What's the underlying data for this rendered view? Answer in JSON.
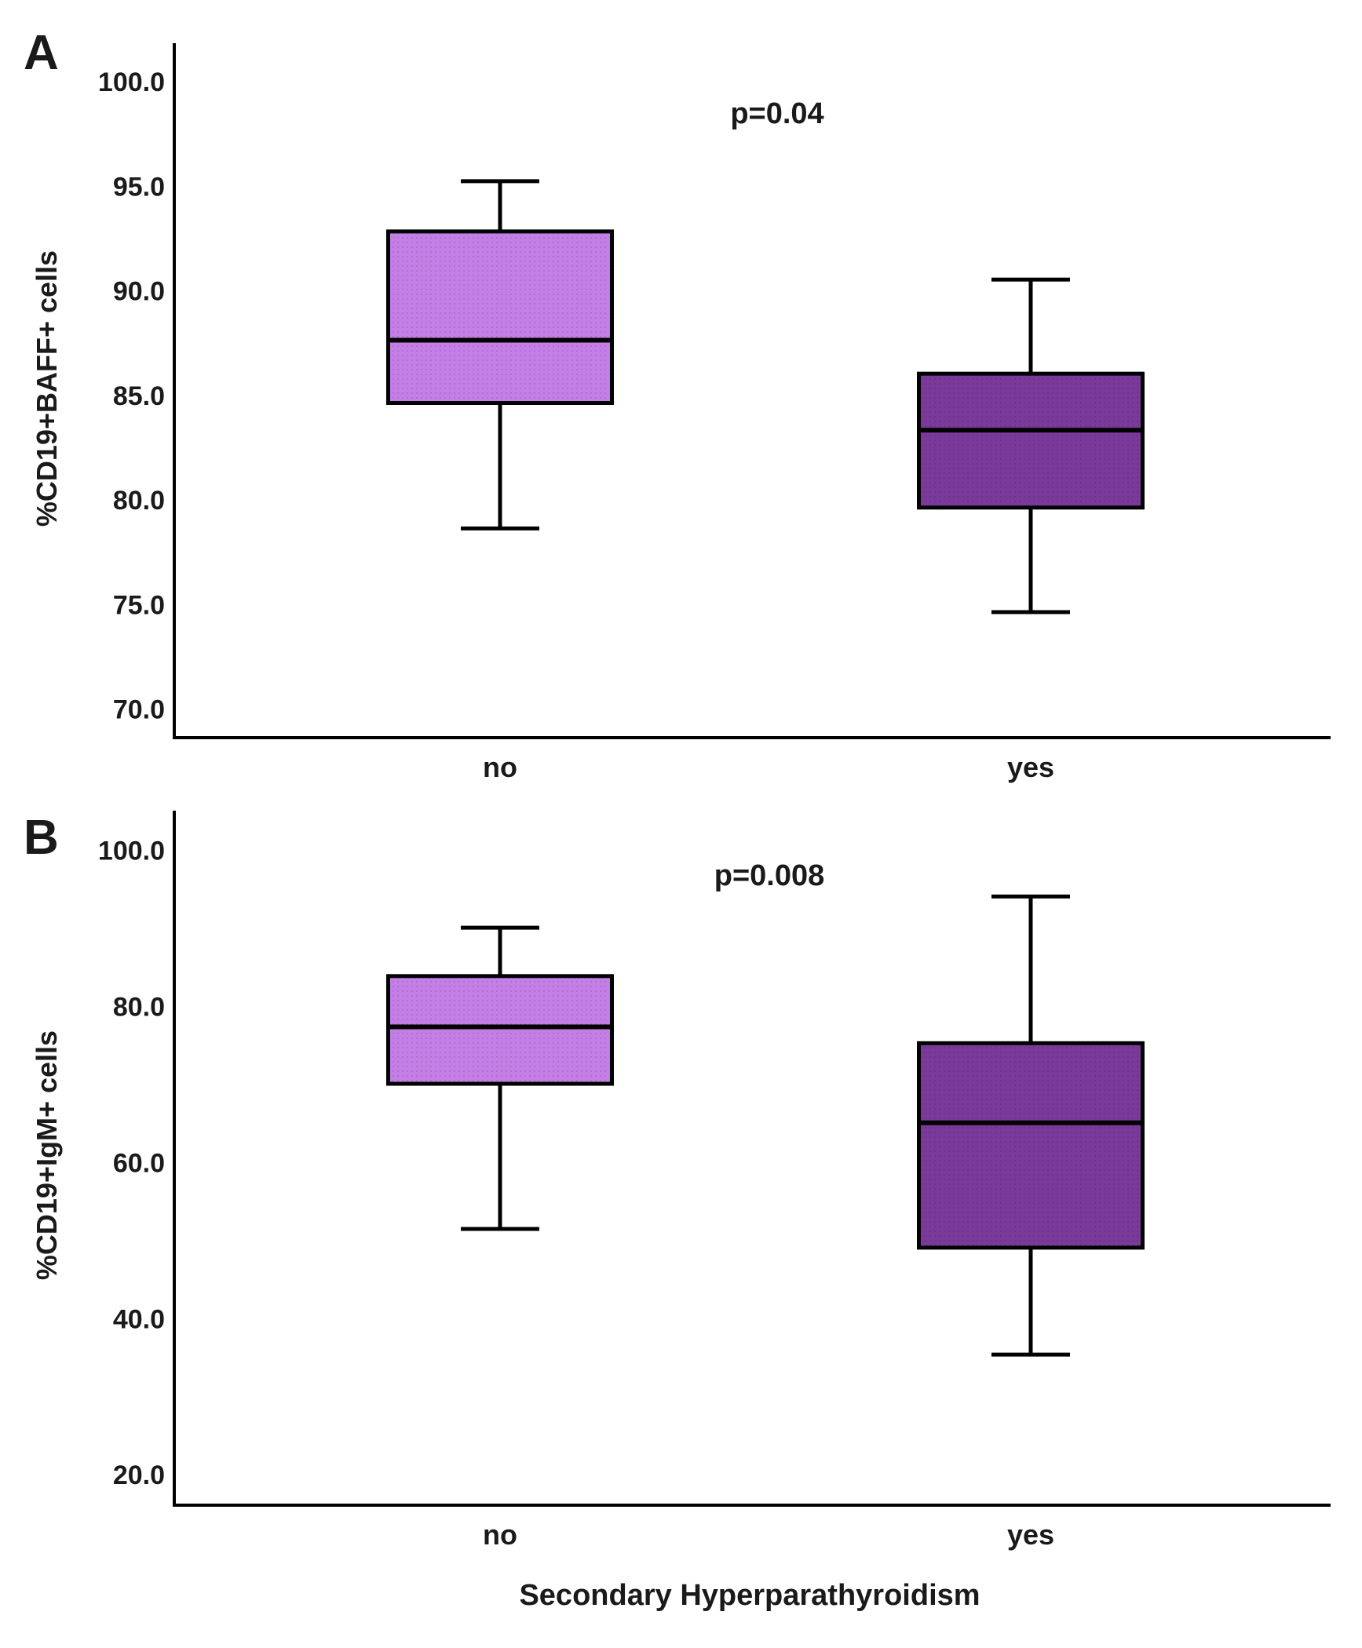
{
  "chart_data": [
    {
      "type": "boxplot",
      "panel_label": "A",
      "ylabel": "%CD19+BAFF+ cells",
      "xlabel": "",
      "ylim": [
        68.6,
        101.8
      ],
      "yticks": [
        70.0,
        75.0,
        80.0,
        85.0,
        90.0,
        95.0,
        100.0
      ],
      "ytick_labels": [
        "70.0",
        "75.0",
        "80.0",
        "85.0",
        "90.0",
        "95.0",
        "100.0"
      ],
      "annotation": "p=0.04",
      "categories": [
        "no",
        "yes"
      ],
      "boxes": [
        {
          "category": "no",
          "whisker_low": 78.6,
          "q1": 84.6,
          "median": 87.6,
          "q3": 92.8,
          "whisker_high": 95.2,
          "color": "#c47fe6"
        },
        {
          "category": "yes",
          "whisker_low": 74.6,
          "q1": 79.6,
          "median": 83.3,
          "q3": 86.0,
          "whisker_high": 90.5,
          "color": "#7a3a9a"
        }
      ]
    },
    {
      "type": "boxplot",
      "panel_label": "B",
      "ylabel": "%CD19+IgM+ cells",
      "xlabel": "Secondary Hyperparathyroidism",
      "ylim": [
        16.0,
        105.0
      ],
      "yticks": [
        20.0,
        40.0,
        60.0,
        80.0,
        100.0
      ],
      "ytick_labels": [
        "20.0",
        "40.0",
        "60.0",
        "80.0",
        "100.0"
      ],
      "annotation": "p=0.008",
      "categories": [
        "no",
        "yes"
      ],
      "boxes": [
        {
          "category": "no",
          "whisker_low": 51.4,
          "q1": 70.0,
          "median": 77.3,
          "q3": 83.8,
          "whisker_high": 90.0,
          "color": "#c47fe6"
        },
        {
          "category": "yes",
          "whisker_low": 35.3,
          "q1": 49.0,
          "median": 65.0,
          "q3": 75.2,
          "whisker_high": 94.0,
          "color": "#7a3a9a"
        }
      ]
    }
  ]
}
